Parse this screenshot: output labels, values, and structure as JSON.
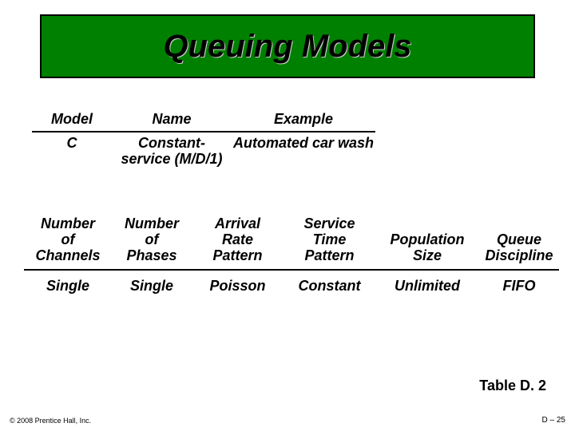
{
  "title": "Queuing Models",
  "topTable": {
    "headers": {
      "model": "Model",
      "name": "Name",
      "example": "Example"
    },
    "row": {
      "model": "C",
      "name": "Constant-\nservice\n(M/D/1)",
      "example": "Automated car\nwash"
    }
  },
  "wideTable": {
    "headers": {
      "c1": "Number\nof\nChannels",
      "c2": "Number\nof\nPhases",
      "c3": "Arrival\nRate\nPattern",
      "c4": "Service\nTime\nPattern",
      "c5": "Population\nSize",
      "c6": "Queue\nDiscipline"
    },
    "row": {
      "c1": "Single",
      "c2": "Single",
      "c3": "Poisson",
      "c4": "Constant",
      "c5": "Unlimited",
      "c6": "FIFO"
    }
  },
  "tableLabel": "Table D. 2",
  "copyright": "© 2008 Prentice Hall, Inc.",
  "pageNumber": "D – 25",
  "colors": {
    "titleBg": "#008000",
    "titleBorder": "#000000",
    "text": "#000000",
    "pageBg": "#ffffff"
  }
}
